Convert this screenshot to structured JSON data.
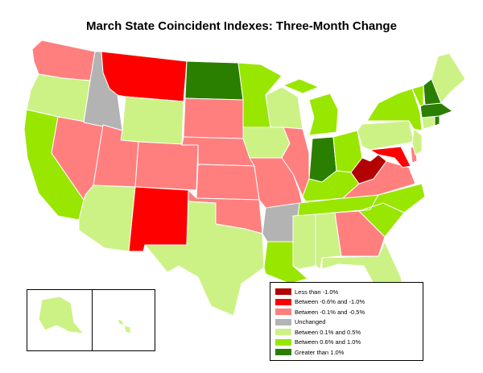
{
  "title": "March State Coincident Indexes: Three-Month Change",
  "legend": {
    "items": [
      {
        "label": "Less than -1.0%",
        "color": "#b30000"
      },
      {
        "label": "Between -0.6% and -1.0%",
        "color": "#ff0000"
      },
      {
        "label": "Between -0.1% and -0.5%",
        "color": "#ff7f7f"
      },
      {
        "label": "Unchanged",
        "color": "#b3b3b3"
      },
      {
        "label": "Between 0.1% and 0.5%",
        "color": "#ccf285"
      },
      {
        "label": "Between 0.6% and 1.0%",
        "color": "#99e600"
      },
      {
        "label": "Greater than 1.0%",
        "color": "#2a7f00"
      }
    ]
  }
}
